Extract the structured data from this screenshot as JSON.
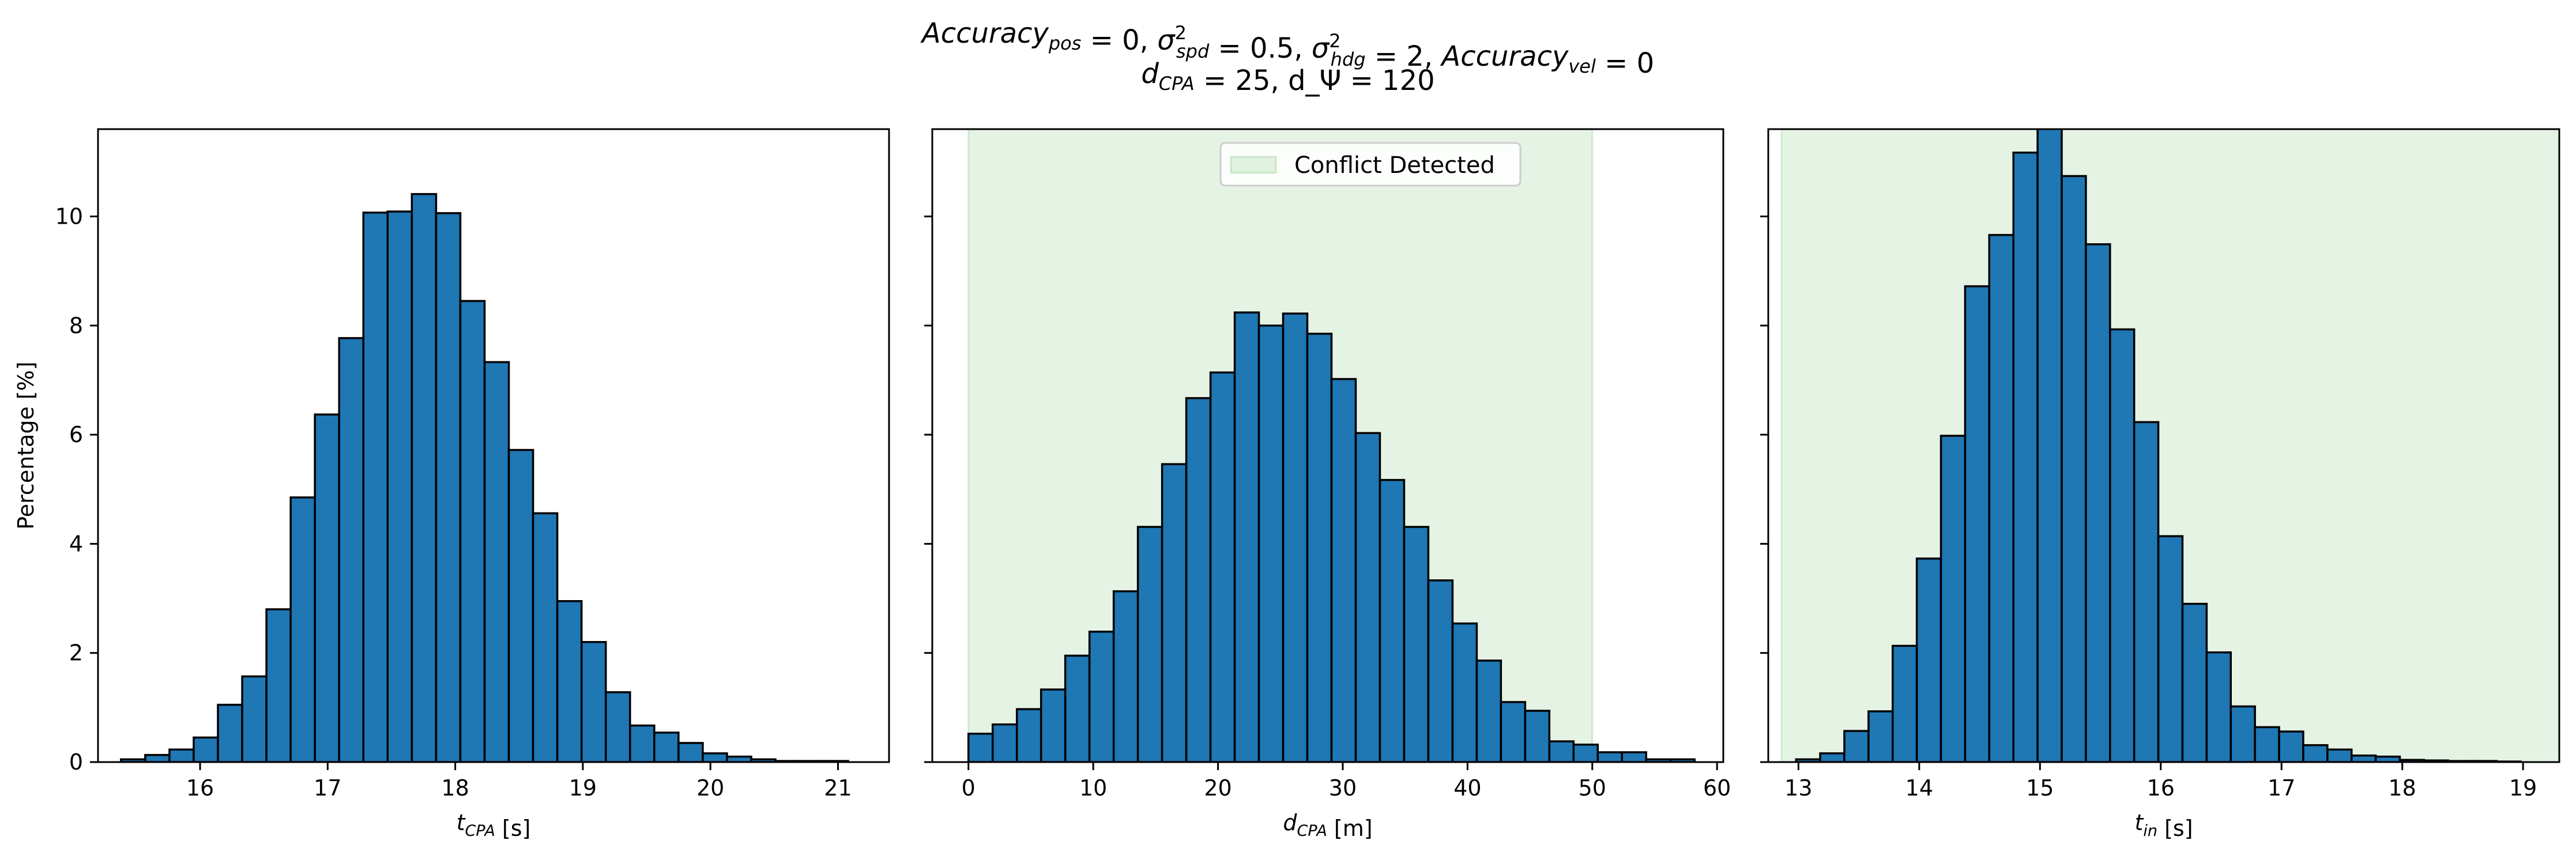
{
  "figure": {
    "title_line1": "Accuracy_pos = 0, σ²_spd = 0.5, σ²_hdg = 2, Accuracy_vel = 0",
    "title_line2": "d_CPA = 25, d_Ψ = 120",
    "colors": {
      "bar": "#1f77b4",
      "edge": "#000000",
      "band": "#2ca02c"
    }
  },
  "chart_data": [
    {
      "type": "bar",
      "xlabel": "t_CPA [s]",
      "ylabel": "Percentage [%]",
      "xlim": [
        15.2,
        21.4
      ],
      "ylim": [
        0,
        11.6
      ],
      "xticks": [
        16,
        17,
        18,
        19,
        20,
        21
      ],
      "yticks": [
        0,
        2,
        4,
        6,
        8,
        10
      ],
      "bin_width": 0.19,
      "bin_starts": [
        15.38,
        15.57,
        15.76,
        15.95,
        16.14,
        16.33,
        16.52,
        16.71,
        16.9,
        17.09,
        17.28,
        17.47,
        17.66,
        17.85,
        18.04,
        18.23,
        18.42,
        18.61,
        18.8,
        18.99,
        19.18,
        19.37,
        19.56,
        19.75,
        19.94,
        20.13,
        20.32,
        20.51,
        20.7,
        20.89
      ],
      "values": [
        0.05,
        0.13,
        0.23,
        0.45,
        1.05,
        1.57,
        2.8,
        4.85,
        6.37,
        7.77,
        10.07,
        10.09,
        10.41,
        10.06,
        8.45,
        7.33,
        5.72,
        4.56,
        2.95,
        2.2,
        1.28,
        0.67,
        0.54,
        0.35,
        0.16,
        0.1,
        0.05,
        0.02,
        0.02,
        0.02
      ],
      "band": null
    },
    {
      "type": "bar",
      "xlabel": "d_CPA [m]",
      "ylabel": "",
      "xlim": [
        -2.9,
        60.5
      ],
      "ylim": [
        0,
        11.6
      ],
      "xticks": [
        0,
        10,
        20,
        30,
        40,
        50,
        60
      ],
      "yticks": [
        0,
        2,
        4,
        6,
        8,
        10
      ],
      "bin_width": 1.94,
      "bin_starts": [
        0.0,
        1.94,
        3.88,
        5.82,
        7.76,
        9.7,
        11.64,
        13.58,
        15.52,
        17.46,
        19.4,
        21.34,
        23.28,
        25.22,
        27.16,
        29.1,
        31.04,
        32.98,
        34.92,
        36.86,
        38.8,
        40.74,
        42.68,
        44.62,
        46.56,
        48.5,
        50.44,
        52.38,
        54.32,
        56.26
      ],
      "values": [
        0.52,
        0.69,
        0.97,
        1.33,
        1.95,
        2.39,
        3.13,
        4.31,
        5.46,
        6.67,
        7.14,
        8.24,
        8.0,
        8.22,
        7.85,
        7.02,
        6.03,
        5.17,
        4.31,
        3.33,
        2.54,
        1.86,
        1.1,
        0.94,
        0.38,
        0.32,
        0.18,
        0.18,
        0.05,
        0.05
      ],
      "band": {
        "x0": 0,
        "x1": 50,
        "label": "Conflict Detected"
      }
    },
    {
      "type": "bar",
      "xlabel": "t_in [s]",
      "ylabel": "",
      "xlim": [
        12.75,
        19.3
      ],
      "ylim": [
        0,
        11.6
      ],
      "xticks": [
        13,
        14,
        15,
        16,
        17,
        18,
        19
      ],
      "yticks": [
        0,
        2,
        4,
        6,
        8,
        10
      ],
      "bin_width": 0.2,
      "bin_starts": [
        12.98,
        13.18,
        13.38,
        13.58,
        13.78,
        13.98,
        14.18,
        14.38,
        14.58,
        14.78,
        14.98,
        15.18,
        15.38,
        15.58,
        15.78,
        15.98,
        16.18,
        16.38,
        16.58,
        16.78,
        16.98,
        17.18,
        17.38,
        17.58,
        17.78,
        17.98,
        18.18,
        18.38,
        18.58,
        18.78
      ],
      "values": [
        0.05,
        0.16,
        0.57,
        0.93,
        2.13,
        3.73,
        5.98,
        8.72,
        9.66,
        11.17,
        11.7,
        10.74,
        9.49,
        7.93,
        6.23,
        4.14,
        2.9,
        2.01,
        1.02,
        0.64,
        0.56,
        0.31,
        0.23,
        0.12,
        0.1,
        0.04,
        0.03,
        0.02,
        0.02,
        0.01
      ],
      "band": {
        "x0": 12.86,
        "x1": 19.3,
        "label": ""
      }
    }
  ]
}
